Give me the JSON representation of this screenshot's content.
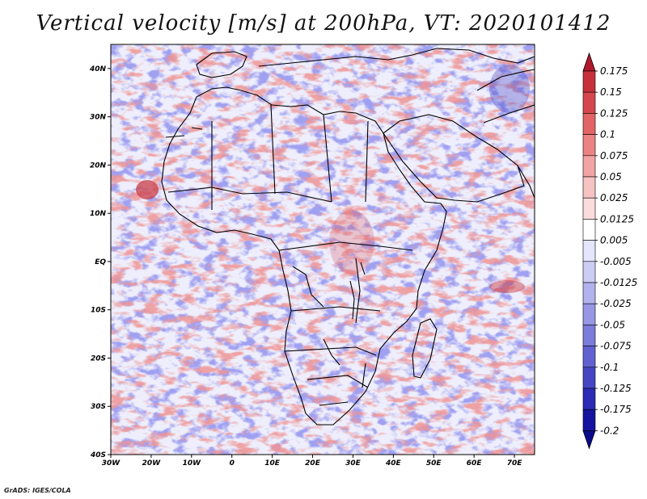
{
  "title": "Vertical velocity [m/s] at 200hPa, VT: 2020101412",
  "credit": "GrADS: IGES/COLA",
  "map": {
    "lat_labels": [
      "40N",
      "30N",
      "20N",
      "10N",
      "EQ",
      "10S",
      "20S",
      "30S",
      "40S"
    ],
    "lon_labels": [
      "30W",
      "20W",
      "10W",
      "0",
      "10E",
      "20E",
      "30E",
      "40E",
      "50E",
      "60E",
      "70E"
    ],
    "lon_range": [
      -30,
      75
    ],
    "lat_range": [
      -40,
      45
    ]
  },
  "colorbar": {
    "labels": [
      "0.175",
      "0.15",
      "0.125",
      "0.1",
      "0.075",
      "0.05",
      "0.025",
      "0.0125",
      "0.005",
      "-0.005",
      "-0.0125",
      "-0.025",
      "-0.05",
      "-0.075",
      "-0.1",
      "-0.125",
      "-0.175",
      "-0.2"
    ],
    "colors": [
      "#b2182b",
      "#c6303a",
      "#d6474d",
      "#e36464",
      "#ec8383",
      "#f2a3a3",
      "#f7c2c2",
      "#fbdcdc",
      "#ffffff",
      "#e5e5fb",
      "#ccccf5",
      "#b2b2ef",
      "#9797e6",
      "#7c7cdc",
      "#6161d2",
      "#4646c5",
      "#2b2bb5",
      "#1414a0",
      "#0a0a8a"
    ]
  }
}
